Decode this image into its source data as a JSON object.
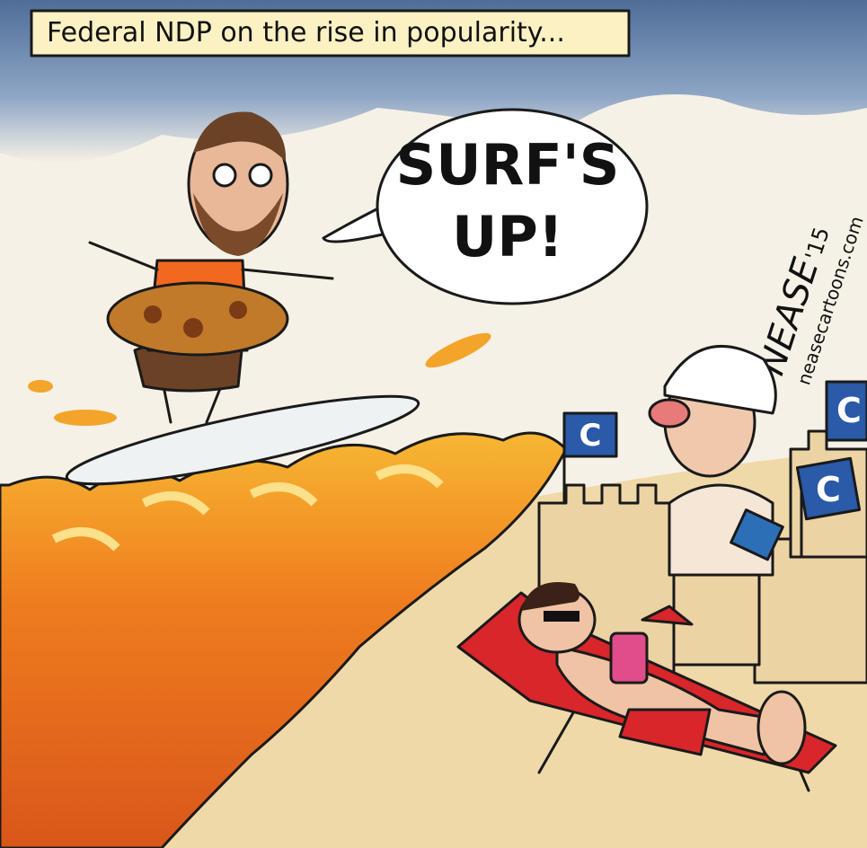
{
  "caption": "Federal NDP on the rise in popularity...",
  "speech_bubble": {
    "lines": [
      "SURF'S",
      "UP!"
    ]
  },
  "signature": {
    "name": "NEASE",
    "year": "'15",
    "website": "neasecartoons.com"
  },
  "flags": [
    "C",
    "C",
    "C"
  ]
}
